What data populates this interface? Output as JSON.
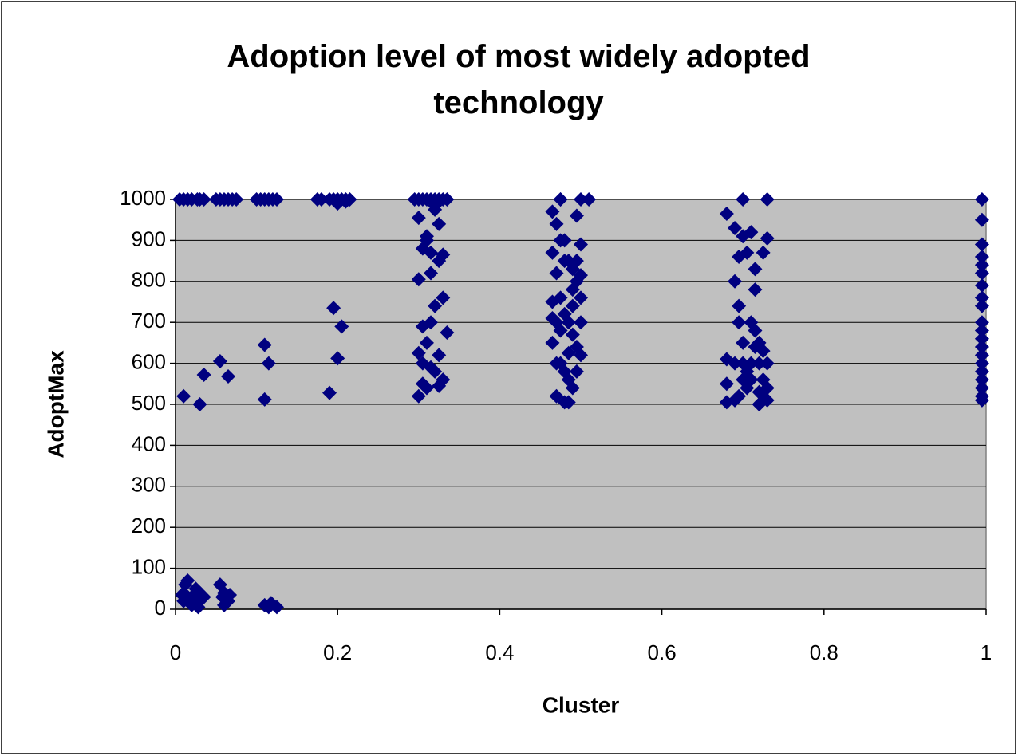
{
  "chart_data": {
    "type": "scatter",
    "title": "Adoption level of most widely adopted technology",
    "xlabel": "Cluster",
    "ylabel": "AdoptMax",
    "xlim": [
      0,
      1
    ],
    "xticks": [
      0,
      0.2,
      0.4,
      0.6,
      0.8,
      1
    ],
    "ylim": [
      0,
      1000
    ],
    "yticks": [
      0,
      100,
      200,
      300,
      400,
      500,
      600,
      700,
      800,
      900,
      1000
    ],
    "grid": true,
    "background": "#c0c0c0",
    "series": [
      {
        "color": "#000080",
        "x": [
          0.005,
          0.01,
          0.015,
          0.02,
          0.027,
          0.03,
          0.035,
          0.01,
          0.01,
          0.012,
          0.015,
          0.02,
          0.02,
          0.025,
          0.03,
          0.03,
          0.035,
          0.028,
          0.018,
          0.008,
          0.01,
          0.03,
          0.035,
          0.05,
          0.055,
          0.06,
          0.065,
          0.07,
          0.075,
          0.055,
          0.06,
          0.065,
          0.06,
          0.058,
          0.067,
          0.055,
          0.065,
          0.1,
          0.105,
          0.11,
          0.115,
          0.12,
          0.125,
          0.11,
          0.115,
          0.125,
          0.118,
          0.11,
          0.115,
          0.11,
          0.175,
          0.18,
          0.19,
          0.195,
          0.2,
          0.205,
          0.21,
          0.215,
          0.2,
          0.21,
          0.195,
          0.205,
          0.2,
          0.19,
          0.295,
          0.3,
          0.305,
          0.31,
          0.315,
          0.32,
          0.325,
          0.33,
          0.335,
          0.3,
          0.305,
          0.31,
          0.315,
          0.32,
          0.325,
          0.33,
          0.3,
          0.305,
          0.31,
          0.315,
          0.32,
          0.325,
          0.33,
          0.335,
          0.3,
          0.305,
          0.31,
          0.315,
          0.32,
          0.325,
          0.33,
          0.3,
          0.305,
          0.31,
          0.315,
          0.32,
          0.325,
          0.465,
          0.47,
          0.475,
          0.48,
          0.485,
          0.49,
          0.495,
          0.5,
          0.465,
          0.47,
          0.475,
          0.48,
          0.485,
          0.49,
          0.495,
          0.5,
          0.465,
          0.47,
          0.475,
          0.48,
          0.485,
          0.49,
          0.495,
          0.5,
          0.465,
          0.47,
          0.475,
          0.48,
          0.485,
          0.49,
          0.495,
          0.5,
          0.465,
          0.47,
          0.475,
          0.48,
          0.485,
          0.49,
          0.495,
          0.5,
          0.475,
          0.5,
          0.51,
          0.68,
          0.69,
          0.695,
          0.7,
          0.705,
          0.71,
          0.715,
          0.72,
          0.725,
          0.73,
          0.68,
          0.69,
          0.695,
          0.7,
          0.705,
          0.71,
          0.715,
          0.72,
          0.725,
          0.73,
          0.68,
          0.69,
          0.695,
          0.7,
          0.705,
          0.71,
          0.715,
          0.72,
          0.725,
          0.73,
          0.68,
          0.69,
          0.695,
          0.7,
          0.705,
          0.71,
          0.715,
          0.72,
          0.725,
          0.73,
          0.7,
          0.73,
          0.995,
          0.995,
          0.995,
          0.995,
          0.995,
          0.995,
          0.995,
          0.995,
          0.995,
          0.995,
          0.995,
          0.995,
          0.995,
          0.995,
          0.995,
          0.995,
          0.995,
          0.995,
          0.995,
          0.995
        ],
        "values": [
          1000,
          1000,
          1000,
          1000,
          1000,
          1000,
          1000,
          20,
          40,
          60,
          70,
          30,
          10,
          50,
          20,
          40,
          30,
          5,
          15,
          35,
          520,
          500,
          572,
          1000,
          1000,
          1000,
          1000,
          1000,
          1000,
          60,
          40,
          20,
          10,
          30,
          35,
          605,
          568,
          1000,
          1000,
          1000,
          1000,
          1000,
          1000,
          10,
          5,
          5,
          15,
          645,
          600,
          512,
          1000,
          1000,
          1000,
          1000,
          1000,
          1000,
          1000,
          1000,
          990,
          995,
          735,
          690,
          612,
          528,
          1000,
          1000,
          1000,
          1000,
          1000,
          1000,
          1000,
          1000,
          1000,
          955,
          880,
          900,
          870,
          985,
          940,
          865,
          520,
          600,
          650,
          700,
          740,
          620,
          760,
          675,
          805,
          690,
          540,
          820,
          580,
          850,
          560,
          625,
          550,
          910,
          590,
          975,
          545,
          970,
          940,
          1000,
          900,
          850,
          830,
          960,
          890,
          870,
          820,
          760,
          720,
          700,
          780,
          640,
          620,
          650,
          700,
          600,
          580,
          560,
          740,
          800,
          760,
          710,
          520,
          680,
          505,
          625,
          540,
          850,
          815,
          750,
          600,
          900,
          850,
          505,
          670,
          580,
          700,
          1000,
          1000,
          1000,
          965,
          930,
          860,
          910,
          870,
          920,
          780,
          650,
          870,
          905,
          550,
          800,
          740,
          600,
          580,
          700,
          640,
          600,
          560,
          600,
          505,
          600,
          520,
          560,
          540,
          600,
          680,
          500,
          520,
          540,
          610,
          510,
          700,
          650,
          570,
          560,
          830,
          530,
          630,
          510,
          1000,
          1000,
          1000,
          950,
          890,
          860,
          840,
          820,
          790,
          760,
          740,
          700,
          680,
          660,
          640,
          620,
          600,
          580,
          560,
          540,
          520,
          510
        ]
      }
    ]
  }
}
